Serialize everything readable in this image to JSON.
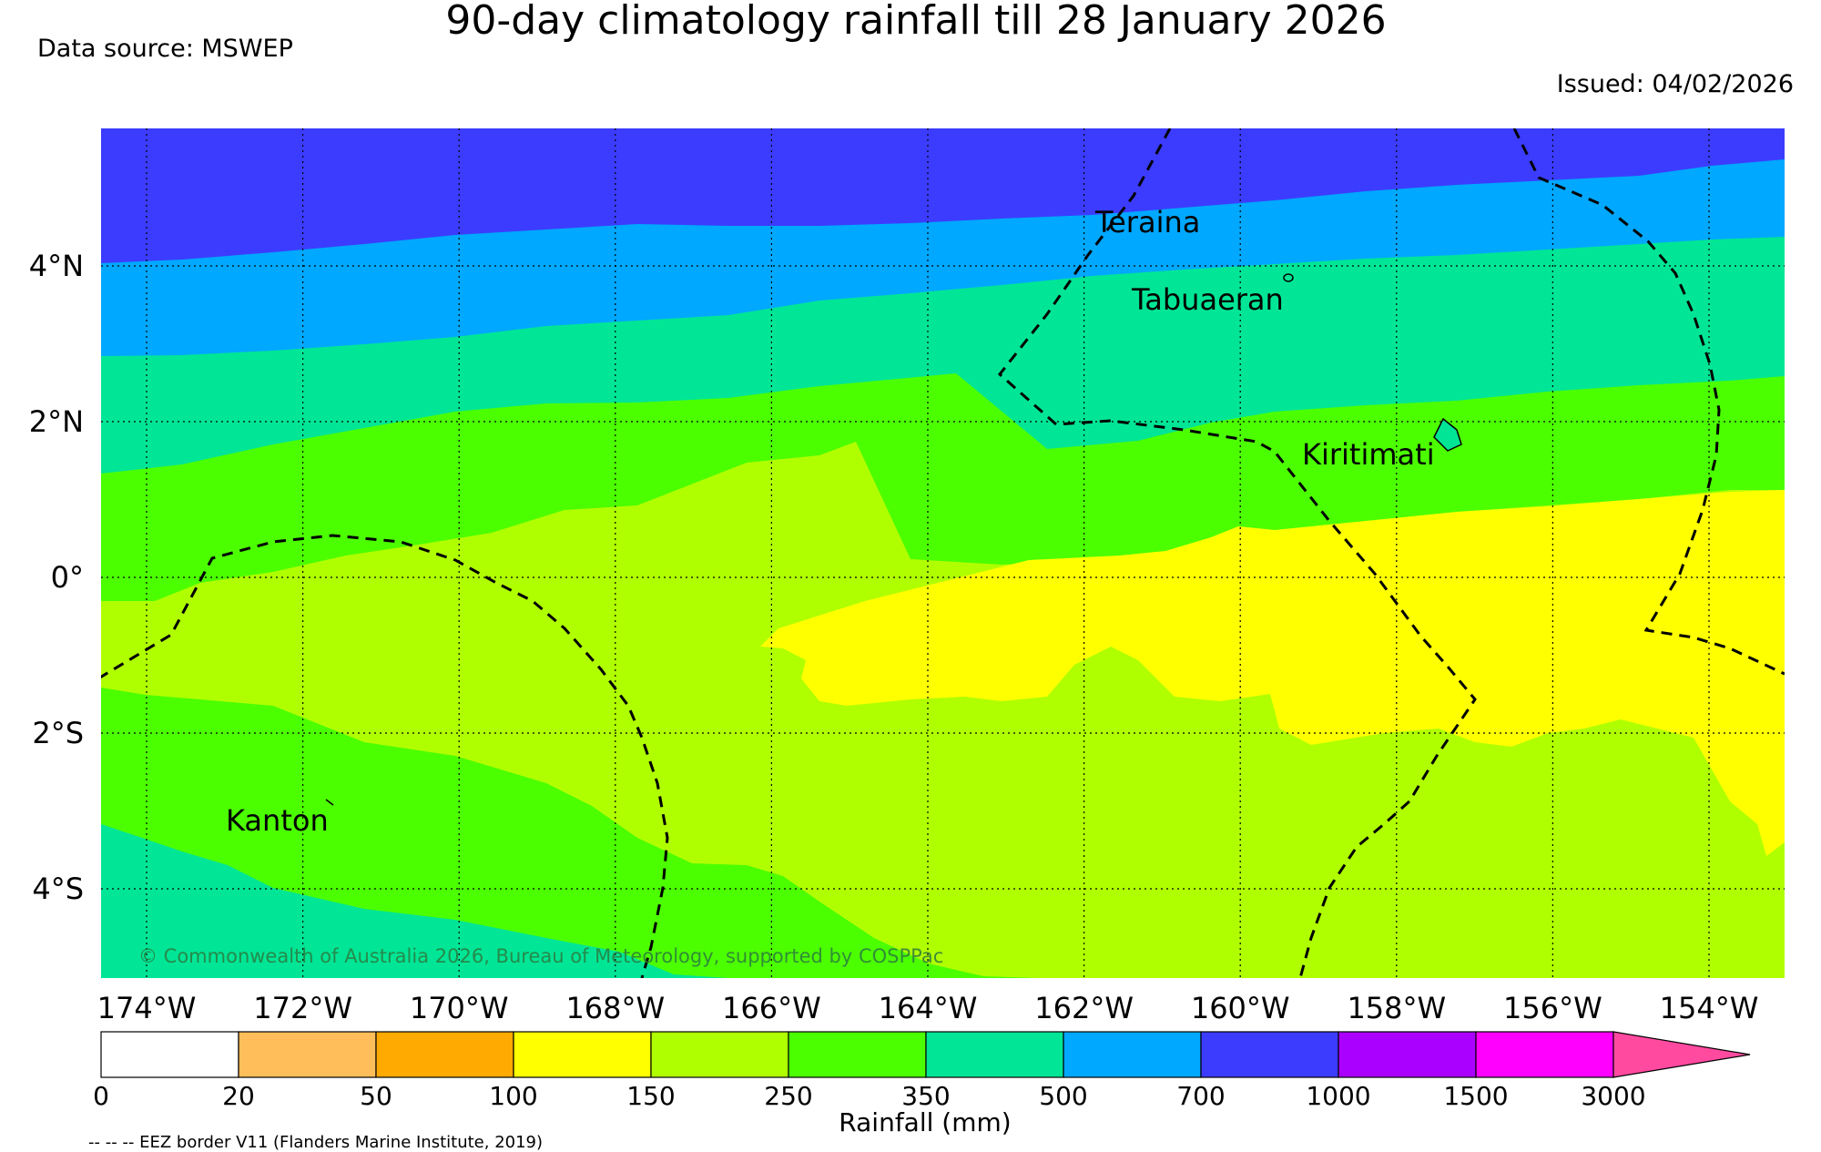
{
  "header": {
    "title": "90-day climatology rainfall till 28 January 2026",
    "source": "Data source: MSWEP",
    "issued": "Issued: 04/02/2026"
  },
  "map": {
    "lon_labels": [
      "174°W",
      "172°W",
      "170°W",
      "168°W",
      "166°W",
      "164°W",
      "162°W",
      "160°W",
      "158°W",
      "156°W",
      "154°W"
    ],
    "lat_labels": [
      "4°N",
      "2°N",
      "0°",
      "2°S",
      "4°S"
    ],
    "places": [
      "Teraina",
      "Tabuaeran",
      "Kiritimati",
      "Kanton"
    ],
    "copyright": "© Commonwealth of Australia 2026, Bureau of Meteorology, supported by COSPPac",
    "band_colors": {
      "b700": "#3c3cff",
      "b500": "#00a8ff",
      "b350": "#00e696",
      "b250": "#4cff00",
      "b150": "#b0ff00",
      "b100": "#ffff00"
    }
  },
  "legend": {
    "label": "Rainfall (mm)",
    "ticks": [
      "0",
      "20",
      "50",
      "100",
      "150",
      "250",
      "350",
      "500",
      "700",
      "1000",
      "1500",
      "3000"
    ],
    "colors": [
      "#ffffff",
      "#ffbe5a",
      "#ffaa00",
      "#ffff00",
      "#b0ff00",
      "#4cff00",
      "#00e696",
      "#00a8ff",
      "#3c3cff",
      "#aa00ff",
      "#ff00ff",
      "#ff4aa0"
    ],
    "eez_note": "-- -- -- EEZ border V11 (Flanders Marine Institute, 2019)"
  }
}
